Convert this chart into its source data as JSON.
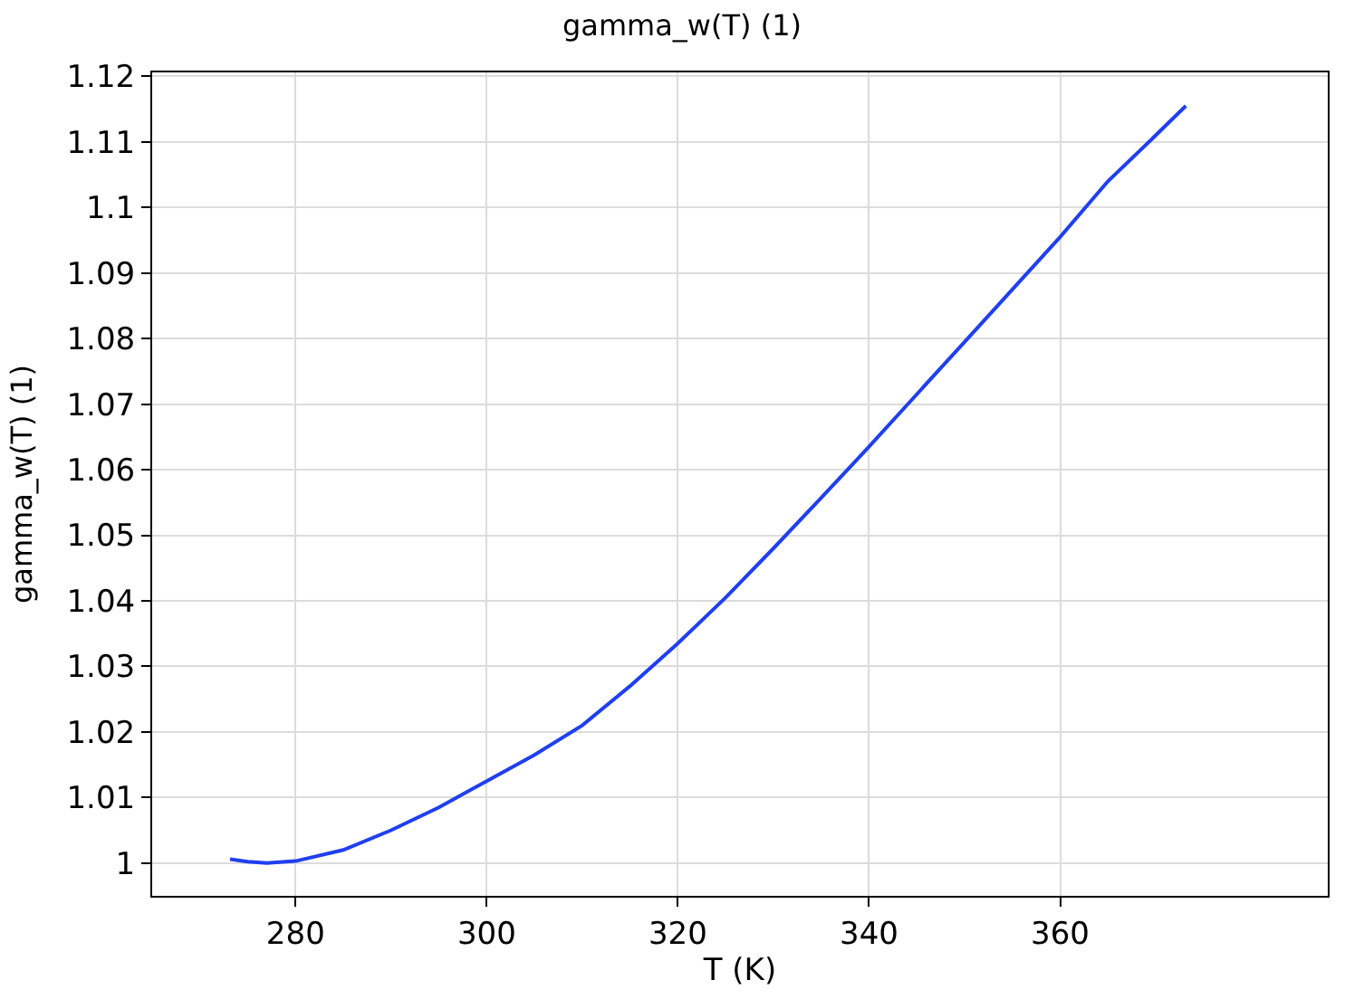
{
  "chart_data": {
    "type": "line",
    "title": "gamma_w(T) (1)",
    "xlabel": "T (K)",
    "ylabel": "gamma_w(T) (1)",
    "x": [
      273.15,
      275,
      277,
      280,
      285,
      290,
      295,
      300,
      305,
      310,
      315,
      320,
      325,
      330,
      335,
      340,
      345,
      350,
      355,
      360,
      365,
      370,
      373.15
    ],
    "series": [
      {
        "color": "#1f3ff0",
        "values": [
          1.0006,
          1.0002,
          1.0,
          1.0003,
          1.002,
          1.005,
          1.0085,
          1.0125,
          1.0165,
          1.021,
          1.027,
          1.0335,
          1.0405,
          1.048,
          1.0557,
          1.0635,
          1.0715,
          1.0795,
          1.0875,
          1.0955,
          1.104,
          1.111,
          1.1155
        ]
      }
    ],
    "xlim": [
      265,
      388
    ],
    "xticks": [
      280,
      300,
      320,
      340,
      360
    ],
    "ylim": [
      0.995,
      1.1206
    ],
    "yticks": [
      1,
      1.01,
      1.02,
      1.03,
      1.04,
      1.05,
      1.06,
      1.07,
      1.08,
      1.09,
      1.1,
      1.11,
      1.12
    ],
    "grid": true,
    "legend": false,
    "marker": "none",
    "line_style": "solid"
  }
}
